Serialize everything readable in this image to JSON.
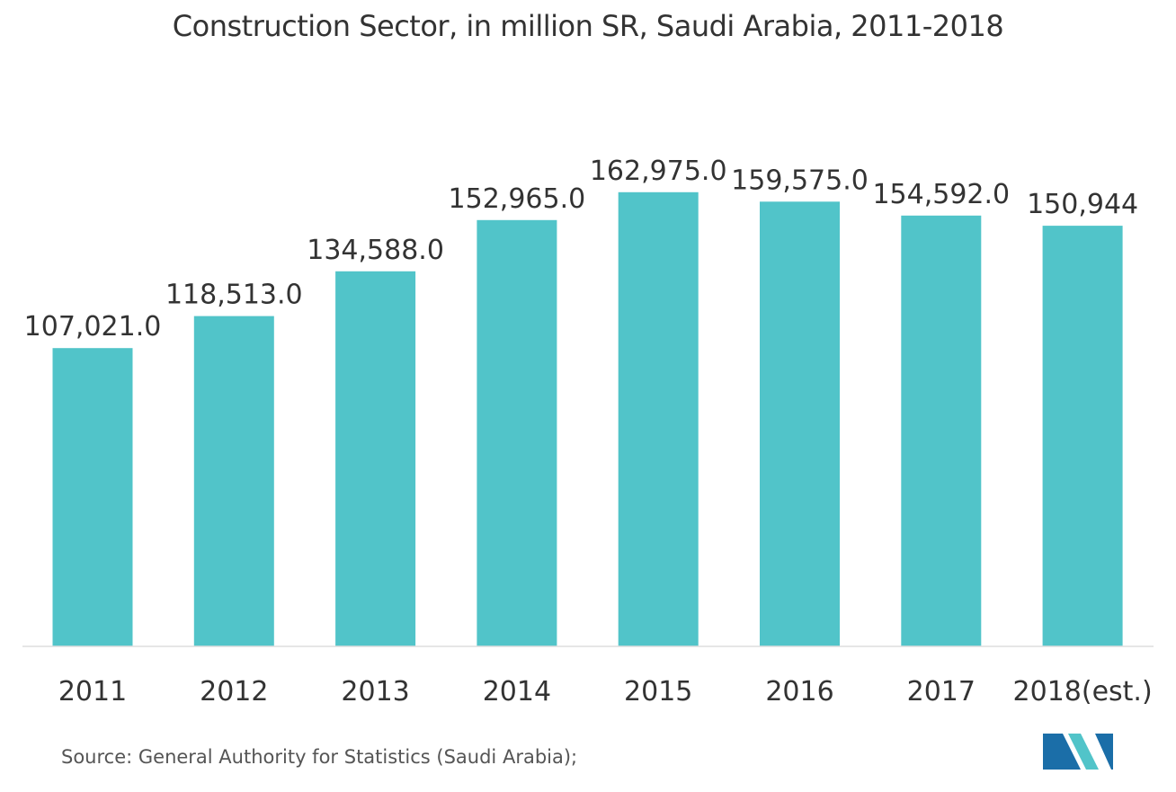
{
  "chart_data": {
    "type": "bar",
    "title": "Construction Sector, in million SR, Saudi Arabia, 2011-2018",
    "categories": [
      "2011",
      "2012",
      "2013",
      "2014",
      "2015",
      "2016",
      "2017",
      "2018(est.)"
    ],
    "values": [
      107021.0,
      118513.0,
      134588.0,
      152965.0,
      162975.0,
      159575.0,
      154592.0,
      150944
    ],
    "value_labels": [
      "107,021.0",
      "118,513.0",
      "134,588.0",
      "152,965.0",
      "162,975.0",
      "159,575.0",
      "154,592.0",
      "150,944"
    ],
    "xlabel": "",
    "ylabel": "",
    "ylim": [
      0,
      200000
    ],
    "grid": false,
    "bar_color": "#51c4c9"
  },
  "footer": {
    "source": "Source: General Authority for Statistics (Saudi Arabia);"
  },
  "logo": {
    "icon": "mordor-intelligence-logo-icon",
    "colors": [
      "#1b6ea8",
      "#51c4c9"
    ]
  }
}
